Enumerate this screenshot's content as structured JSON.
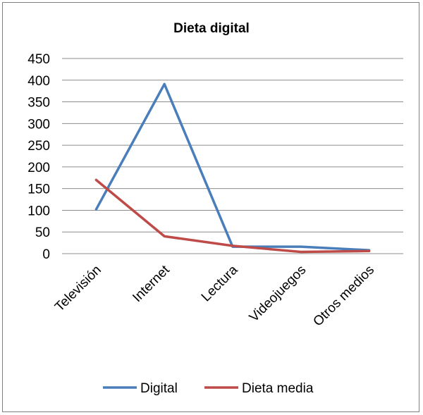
{
  "chart_data": {
    "type": "line",
    "title": "Dieta digital",
    "xlabel": "",
    "ylabel": "",
    "categories": [
      "Televisión",
      "Internet",
      "Lectura",
      "Videojuegos",
      "Otros medios"
    ],
    "ylim": [
      0,
      450
    ],
    "yticks": [
      0,
      50,
      100,
      150,
      200,
      250,
      300,
      350,
      400,
      450
    ],
    "grid": true,
    "legend_position": "bottom",
    "series": [
      {
        "name": "Digital",
        "color": "#4a7ebb",
        "values": [
          102,
          391,
          16,
          16,
          8
        ]
      },
      {
        "name": "Dieta media",
        "color": "#be4b48",
        "values": [
          170,
          40,
          18,
          4,
          6
        ]
      }
    ]
  }
}
